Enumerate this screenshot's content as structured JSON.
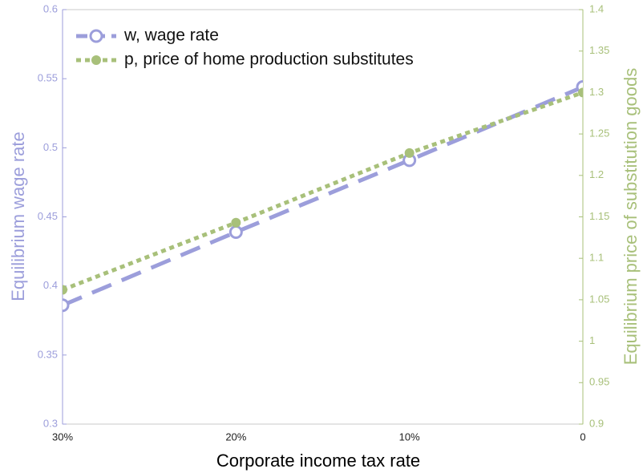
{
  "chart_data": {
    "type": "line",
    "xlabel": "Corporate income tax rate",
    "ylabel": "Equilibrium wage rate",
    "y2label": "Equilibrium price of substitution goods",
    "categories": [
      "30%",
      "20%",
      "10%",
      "0"
    ],
    "series": [
      {
        "name": "w, wage rate",
        "color": "#9c9edb",
        "style": "dashed",
        "marker": "o",
        "values": [
          0.386,
          0.439,
          0.491,
          0.544
        ]
      },
      {
        "name": "p, price of home production substitutes",
        "color": "#a8c07a",
        "style": "dotted",
        "marker": "o-filled",
        "axis": "y2",
        "values": [
          1.062,
          1.143,
          1.227,
          1.3
        ]
      }
    ],
    "ylim": [
      0.3,
      0.6
    ],
    "yticks": [
      0.3,
      0.35,
      0.4,
      0.45,
      0.5,
      0.55,
      0.6
    ],
    "y2lim": [
      0.9,
      1.4
    ],
    "y2ticks": [
      0.9,
      0.95,
      1,
      1.05,
      1.1,
      1.15,
      1.2,
      1.25,
      1.3,
      1.35,
      1.4
    ],
    "legend": "upper left"
  }
}
